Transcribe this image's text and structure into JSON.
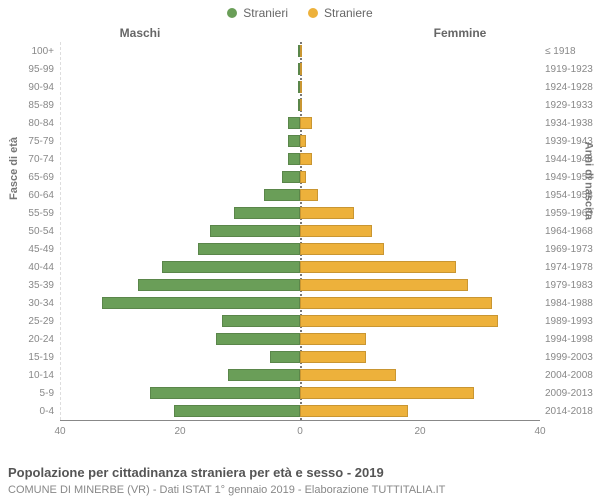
{
  "legend": {
    "male_label": "Stranieri",
    "female_label": "Straniere"
  },
  "headers": {
    "left": "Maschi",
    "right": "Femmine"
  },
  "axis_labels": {
    "left": "Fasce di età",
    "right": "Anni di nascita"
  },
  "title": "Popolazione per cittadinanza straniera per età e sesso - 2019",
  "subtitle": "COMUNE DI MINERBE (VR) - Dati ISTAT 1° gennaio 2019 - Elaborazione TUTTITALIA.IT",
  "colors": {
    "male": "#6a9e58",
    "female": "#edb13b",
    "grid": "#dddddd",
    "axis": "#888888",
    "bg": "#ffffff",
    "text_muted": "#888888"
  },
  "chart": {
    "type": "population-pyramid",
    "x_max": 40,
    "x_ticks": [
      40,
      20,
      0,
      20,
      40
    ],
    "bar_border": "rgba(0,0,0,0.15)",
    "rows": [
      {
        "age": "100+",
        "birth": "≤ 1918",
        "m": 0,
        "f": 0
      },
      {
        "age": "95-99",
        "birth": "1919-1923",
        "m": 0,
        "f": 0
      },
      {
        "age": "90-94",
        "birth": "1924-1928",
        "m": 0,
        "f": 0
      },
      {
        "age": "85-89",
        "birth": "1929-1933",
        "m": 0,
        "f": 0
      },
      {
        "age": "80-84",
        "birth": "1934-1938",
        "m": 2,
        "f": 2
      },
      {
        "age": "75-79",
        "birth": "1939-1943",
        "m": 2,
        "f": 1
      },
      {
        "age": "70-74",
        "birth": "1944-1948",
        "m": 2,
        "f": 2
      },
      {
        "age": "65-69",
        "birth": "1949-1953",
        "m": 3,
        "f": 1
      },
      {
        "age": "60-64",
        "birth": "1954-1958",
        "m": 6,
        "f": 3
      },
      {
        "age": "55-59",
        "birth": "1959-1963",
        "m": 11,
        "f": 9
      },
      {
        "age": "50-54",
        "birth": "1964-1968",
        "m": 15,
        "f": 12
      },
      {
        "age": "45-49",
        "birth": "1969-1973",
        "m": 17,
        "f": 14
      },
      {
        "age": "40-44",
        "birth": "1974-1978",
        "m": 23,
        "f": 26
      },
      {
        "age": "35-39",
        "birth": "1979-1983",
        "m": 27,
        "f": 28
      },
      {
        "age": "30-34",
        "birth": "1984-1988",
        "m": 33,
        "f": 32
      },
      {
        "age": "25-29",
        "birth": "1989-1993",
        "m": 13,
        "f": 33
      },
      {
        "age": "20-24",
        "birth": "1994-1998",
        "m": 14,
        "f": 11
      },
      {
        "age": "15-19",
        "birth": "1999-2003",
        "m": 5,
        "f": 11
      },
      {
        "age": "10-14",
        "birth": "2004-2008",
        "m": 12,
        "f": 16
      },
      {
        "age": "5-9",
        "birth": "2009-2013",
        "m": 25,
        "f": 29
      },
      {
        "age": "0-4",
        "birth": "2014-2018",
        "m": 21,
        "f": 18
      }
    ]
  }
}
